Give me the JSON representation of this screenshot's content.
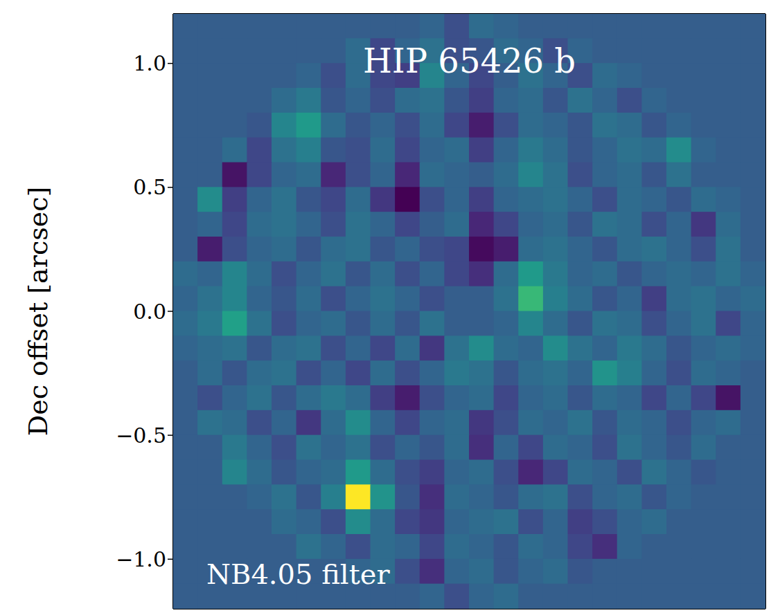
{
  "chart_data": {
    "type": "heatmap",
    "title": "HIP 65426 b",
    "annotation": "NB4.05 filter",
    "y_label": "Dec offset [arcsec]",
    "xlim": [
      -1.2,
      1.2
    ],
    "ylim": [
      -1.2,
      1.2
    ],
    "xticks": [
      -1,
      -0.5,
      0,
      0.5,
      1
    ],
    "yticks": [
      {
        "value": 1,
        "label": "1.0"
      },
      {
        "value": 0.5,
        "label": "0.5"
      },
      {
        "value": 0,
        "label": "0.0"
      },
      {
        "value": -0.5,
        "label": "−0.5"
      },
      {
        "value": -1,
        "label": "−1.0"
      }
    ],
    "tick_labels": "y",
    "zlim": [
      -1.1,
      2.2
    ],
    "x": [
      -1.15,
      -1.05,
      -0.95,
      -0.85,
      -0.75,
      -0.65,
      -0.55,
      -0.45,
      -0.35,
      -0.25,
      -0.15,
      -0.05,
      0.05,
      0.15,
      0.25,
      0.35,
      0.45,
      0.55,
      0.65,
      0.75,
      0.85,
      0.95,
      1.05,
      1.15
    ],
    "y": [
      1.15,
      1.05,
      0.95,
      0.85,
      0.75,
      0.65,
      0.55,
      0.45,
      0.35,
      0.25,
      0.15,
      0.05,
      -0.05,
      -0.15,
      -0.25,
      -0.35,
      -0.45,
      -0.55,
      -0.65,
      -0.75,
      -0.85,
      -0.95,
      -1.05,
      -1.15
    ],
    "cells": [
      [
        0,
        0,
        0,
        0,
        0,
        0,
        0,
        0,
        0,
        0,
        0.1,
        -0.2,
        0.2,
        0.1,
        0,
        0,
        0,
        0,
        0,
        0,
        0,
        0,
        0,
        0
      ],
      [
        0,
        0,
        0,
        0,
        0,
        0,
        0,
        0.2,
        -0.3,
        0.1,
        0.3,
        -0.2,
        -0.1,
        0.2,
        0.1,
        -0.2,
        0.1,
        0,
        0,
        0,
        0,
        0,
        0,
        0
      ],
      [
        0,
        0,
        0,
        0,
        0,
        0.1,
        -0.2,
        0.2,
        -0.3,
        -0.4,
        0.6,
        0.1,
        -0.3,
        0,
        0.3,
        0.1,
        -0.2,
        0.2,
        0.1,
        0,
        0,
        0,
        0,
        0
      ],
      [
        0,
        0,
        0,
        0,
        0.2,
        0.4,
        -0.1,
        0.1,
        -0.2,
        0.2,
        0.3,
        -0.1,
        -0.4,
        0.1,
        0.2,
        -0.1,
        0.3,
        0.1,
        -0.2,
        0.1,
        0,
        0,
        0,
        0
      ],
      [
        0,
        0,
        0,
        -0.1,
        0.6,
        0.9,
        0.2,
        -0.1,
        0.1,
        -0.2,
        0.2,
        -0.3,
        -0.8,
        -0.2,
        0.2,
        0.1,
        -0.1,
        0.3,
        0.2,
        -0.1,
        0.1,
        0,
        0,
        0
      ],
      [
        0,
        0,
        0.2,
        -0.3,
        0.3,
        0.5,
        -0.1,
        -0.2,
        0.2,
        -0.3,
        0.1,
        0.2,
        -0.4,
        0.1,
        0.4,
        0.2,
        -0.1,
        0.1,
        0.3,
        0.2,
        0.7,
        0.1,
        0,
        0
      ],
      [
        0,
        0,
        -0.9,
        -0.3,
        0.1,
        0.2,
        -0.7,
        -0.2,
        0.1,
        -0.7,
        0.2,
        0.1,
        0,
        0.2,
        0.6,
        0.3,
        -0.2,
        0.1,
        0.2,
        -0.1,
        0.3,
        0,
        0,
        0
      ],
      [
        0,
        0.7,
        -0.4,
        0.1,
        0.3,
        -0.1,
        -0.3,
        0.2,
        -0.5,
        -1.1,
        -0.2,
        0.1,
        -0.4,
        0.1,
        0.2,
        0.3,
        0.1,
        -0.2,
        0.2,
        0.1,
        -0.1,
        0.2,
        0.1,
        0
      ],
      [
        0,
        0.1,
        -0.3,
        0.2,
        0.3,
        0.1,
        -0.2,
        0.3,
        0.1,
        -0.3,
        0,
        0.2,
        -0.7,
        -0.3,
        0.1,
        0.2,
        -0.1,
        0.3,
        0.2,
        -0.2,
        0.1,
        -0.5,
        0.2,
        0
      ],
      [
        0,
        -0.8,
        -0.2,
        0.1,
        0.2,
        -0.1,
        0.2,
        0.3,
        -0.1,
        0.1,
        -0.2,
        -0.3,
        -1.0,
        -0.8,
        0.2,
        0.3,
        0.1,
        -0.1,
        0.2,
        0.3,
        0.1,
        -0.2,
        0.3,
        0
      ],
      [
        0.2,
        0.1,
        0.6,
        0.2,
        -0.2,
        0.1,
        0.3,
        -0.1,
        0.2,
        -0.2,
        0.1,
        -0.3,
        -0.6,
        0.2,
        0.9,
        0.4,
        0.1,
        0.2,
        -0.1,
        0.1,
        0.2,
        0.1,
        0.3,
        0.1
      ],
      [
        0.1,
        0.3,
        0.6,
        0.1,
        -0.1,
        0.2,
        -0.2,
        0.1,
        0.3,
        0.1,
        -0.2,
        0,
        0,
        0.3,
        1.4,
        0.5,
        0.2,
        -0.1,
        0.1,
        -0.4,
        0.2,
        0.3,
        0.1,
        0.2
      ],
      [
        0.2,
        0.4,
        1.0,
        0.3,
        -0.2,
        0.1,
        0.2,
        -0.1,
        0.2,
        -0.1,
        0.3,
        0,
        0,
        0.1,
        0.6,
        0.2,
        -0.1,
        0.3,
        0.2,
        -0.2,
        0.1,
        0.3,
        -0.3,
        0.1
      ],
      [
        0.1,
        0.2,
        0.3,
        -0.1,
        0.2,
        0.3,
        -0.2,
        0.1,
        -0.3,
        0.2,
        -0.5,
        0.3,
        0.7,
        0.2,
        0.1,
        0.7,
        0.3,
        0.1,
        0.4,
        0.2,
        -0.1,
        0.1,
        0.2,
        0.1
      ],
      [
        0,
        0.2,
        -0.1,
        0.2,
        0.3,
        -0.2,
        0.1,
        -0.3,
        0.2,
        -0.2,
        0.1,
        0.4,
        0.3,
        -0.1,
        0.2,
        0.3,
        0.1,
        0.8,
        0.5,
        0.1,
        -0.2,
        0.2,
        0.1,
        0
      ],
      [
        0,
        -0.2,
        0.1,
        0.3,
        -0.1,
        0.2,
        0.4,
        0.2,
        -0.4,
        -0.8,
        -0.2,
        0.1,
        0.2,
        -0.3,
        0.1,
        0.2,
        -0.1,
        0.2,
        0.1,
        -0.3,
        0.1,
        -0.3,
        -0.9,
        0
      ],
      [
        0,
        0.3,
        0.2,
        -0.2,
        0.1,
        -0.5,
        0.2,
        0.7,
        0.1,
        -0.3,
        0.1,
        0.2,
        -0.5,
        -0.2,
        0.2,
        0.1,
        0.3,
        -0.1,
        0.2,
        0.1,
        -0.2,
        0.1,
        0.2,
        0
      ],
      [
        0,
        0,
        0.4,
        0.1,
        -0.2,
        0.3,
        0.1,
        0.3,
        -0.2,
        0.1,
        -0.1,
        0.2,
        -0.6,
        0.1,
        -0.3,
        0.2,
        0.1,
        -0.2,
        0.3,
        0.1,
        -0.1,
        0.2,
        0,
        0
      ],
      [
        0,
        0,
        0.6,
        0.2,
        -0.1,
        0.1,
        0.2,
        0.9,
        0.2,
        -0.2,
        -0.4,
        0.1,
        0.2,
        -0.2,
        -0.7,
        -0.3,
        0.2,
        0.1,
        -0.2,
        0.3,
        0.1,
        -0.1,
        0,
        0
      ],
      [
        0,
        0,
        0,
        0.1,
        0.3,
        -0.1,
        0.5,
        2.2,
        0.8,
        -0.1,
        -0.6,
        0.2,
        0.1,
        -0.1,
        0.2,
        0.3,
        -0.2,
        0.1,
        0.2,
        -0.1,
        0.1,
        0,
        0,
        0
      ],
      [
        0,
        0,
        0,
        0,
        0.2,
        0.1,
        -0.2,
        0.7,
        0.2,
        -0.3,
        -0.5,
        0.1,
        0.2,
        0.3,
        -0.2,
        0.1,
        -0.4,
        -0.2,
        0.1,
        0.2,
        0,
        0,
        0,
        0
      ],
      [
        0,
        0,
        0,
        0,
        0,
        0.3,
        0.1,
        -0.2,
        0.2,
        0.1,
        -0.3,
        0.2,
        0.1,
        -0.1,
        0.2,
        0.1,
        -0.3,
        -0.6,
        0.1,
        0,
        0,
        0,
        0,
        0
      ],
      [
        0,
        0,
        0,
        0,
        0,
        0,
        0,
        0.1,
        0.2,
        -0.2,
        -0.6,
        0.1,
        0.2,
        -0.1,
        0.1,
        0.2,
        -0.1,
        0,
        0,
        0,
        0,
        0,
        0,
        0
      ],
      [
        0,
        0,
        0,
        0,
        0,
        0,
        0,
        0,
        0,
        0,
        0.1,
        -0.2,
        0.1,
        0.2,
        0,
        0,
        0,
        0,
        0,
        0,
        0,
        0,
        0,
        0
      ]
    ]
  }
}
